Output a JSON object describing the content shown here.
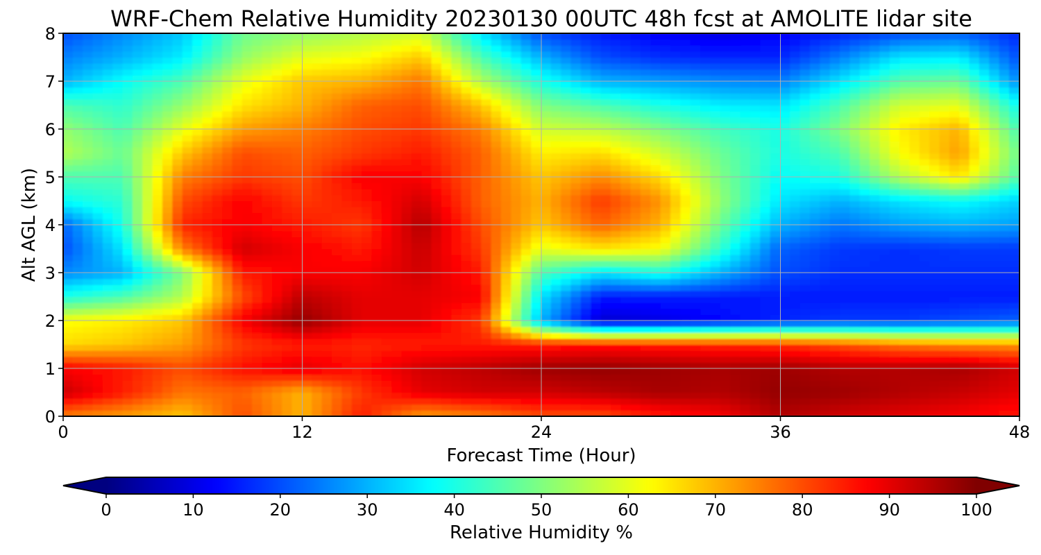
{
  "chart_data": {
    "type": "heatmap",
    "title": "WRF-Chem Relative Humidity 20230130 00UTC 48h fcst at AMOLITE lidar site",
    "xlabel": "Forecast Time (Hour)",
    "ylabel": "Alt AGL (km)",
    "xlim": [
      0,
      48
    ],
    "ylim": [
      0,
      8
    ],
    "xticks": [
      0,
      12,
      24,
      36,
      48
    ],
    "yticks": [
      0,
      1,
      2,
      3,
      4,
      5,
      6,
      7,
      8
    ],
    "grid": true,
    "colormap": "jet",
    "colorbar": {
      "label": "Relative Humidity %",
      "range": [
        0,
        100
      ],
      "ticks": [
        0,
        10,
        20,
        30,
        40,
        50,
        60,
        70,
        80,
        90,
        100
      ],
      "extend": "both",
      "orientation": "horizontal"
    },
    "x": [
      0,
      3,
      6,
      9,
      12,
      15,
      18,
      21,
      24,
      27,
      30,
      33,
      36,
      39,
      42,
      45,
      48
    ],
    "y": [
      0,
      0.5,
      1,
      1.5,
      2,
      2.5,
      3,
      3.5,
      4,
      4.5,
      5,
      5.5,
      6,
      6.5,
      7,
      7.5,
      8
    ],
    "z": [
      [
        75,
        72,
        68,
        80,
        70,
        85,
        72,
        75,
        80,
        80,
        85,
        88,
        95,
        92,
        90,
        88,
        85
      ],
      [
        93,
        85,
        76,
        78,
        70,
        82,
        90,
        92,
        92,
        94,
        96,
        95,
        98,
        97,
        95,
        93,
        90
      ],
      [
        88,
        85,
        80,
        86,
        90,
        86,
        92,
        94,
        97,
        98,
        97,
        96,
        97,
        95,
        95,
        96,
        92
      ],
      [
        66,
        68,
        72,
        82,
        85,
        84,
        85,
        85,
        85,
        86,
        85,
        84,
        83,
        80,
        76,
        74,
        73
      ],
      [
        62,
        64,
        68,
        88,
        98,
        90,
        90,
        82,
        30,
        8,
        10,
        13,
        16,
        18,
        18,
        20,
        22
      ],
      [
        40,
        45,
        55,
        80,
        94,
        90,
        90,
        88,
        35,
        15,
        15,
        15,
        15,
        15,
        15,
        15,
        15
      ],
      [
        26,
        30,
        50,
        85,
        88,
        88,
        92,
        85,
        45,
        35,
        40,
        30,
        20,
        17,
        17,
        17,
        17
      ],
      [
        20,
        35,
        75,
        92,
        88,
        85,
        93,
        82,
        60,
        65,
        62,
        42,
        22,
        18,
        17,
        18,
        18
      ],
      [
        22,
        40,
        84,
        88,
        85,
        82,
        95,
        80,
        68,
        78,
        70,
        48,
        30,
        24,
        28,
        30,
        28
      ],
      [
        38,
        42,
        80,
        88,
        82,
        85,
        92,
        78,
        70,
        82,
        73,
        52,
        35,
        30,
        35,
        38,
        33
      ],
      [
        45,
        45,
        75,
        82,
        80,
        88,
        88,
        78,
        68,
        74,
        66,
        50,
        38,
        40,
        55,
        65,
        45
      ],
      [
        55,
        48,
        68,
        80,
        78,
        82,
        85,
        78,
        64,
        66,
        58,
        48,
        40,
        45,
        62,
        72,
        48
      ],
      [
        52,
        45,
        60,
        72,
        75,
        80,
        82,
        75,
        58,
        56,
        50,
        44,
        40,
        50,
        64,
        70,
        44
      ],
      [
        45,
        42,
        52,
        65,
        70,
        78,
        80,
        68,
        50,
        45,
        40,
        36,
        35,
        45,
        58,
        60,
        38
      ],
      [
        30,
        38,
        45,
        60,
        68,
        70,
        76,
        55,
        40,
        30,
        28,
        26,
        25,
        35,
        46,
        48,
        26
      ],
      [
        25,
        30,
        36,
        52,
        60,
        62,
        68,
        45,
        30,
        20,
        17,
        16,
        16,
        25,
        35,
        36,
        20
      ],
      [
        20,
        26,
        32,
        48,
        52,
        55,
        58,
        35,
        20,
        15,
        12,
        10,
        12,
        16,
        20,
        22,
        16
      ]
    ]
  }
}
